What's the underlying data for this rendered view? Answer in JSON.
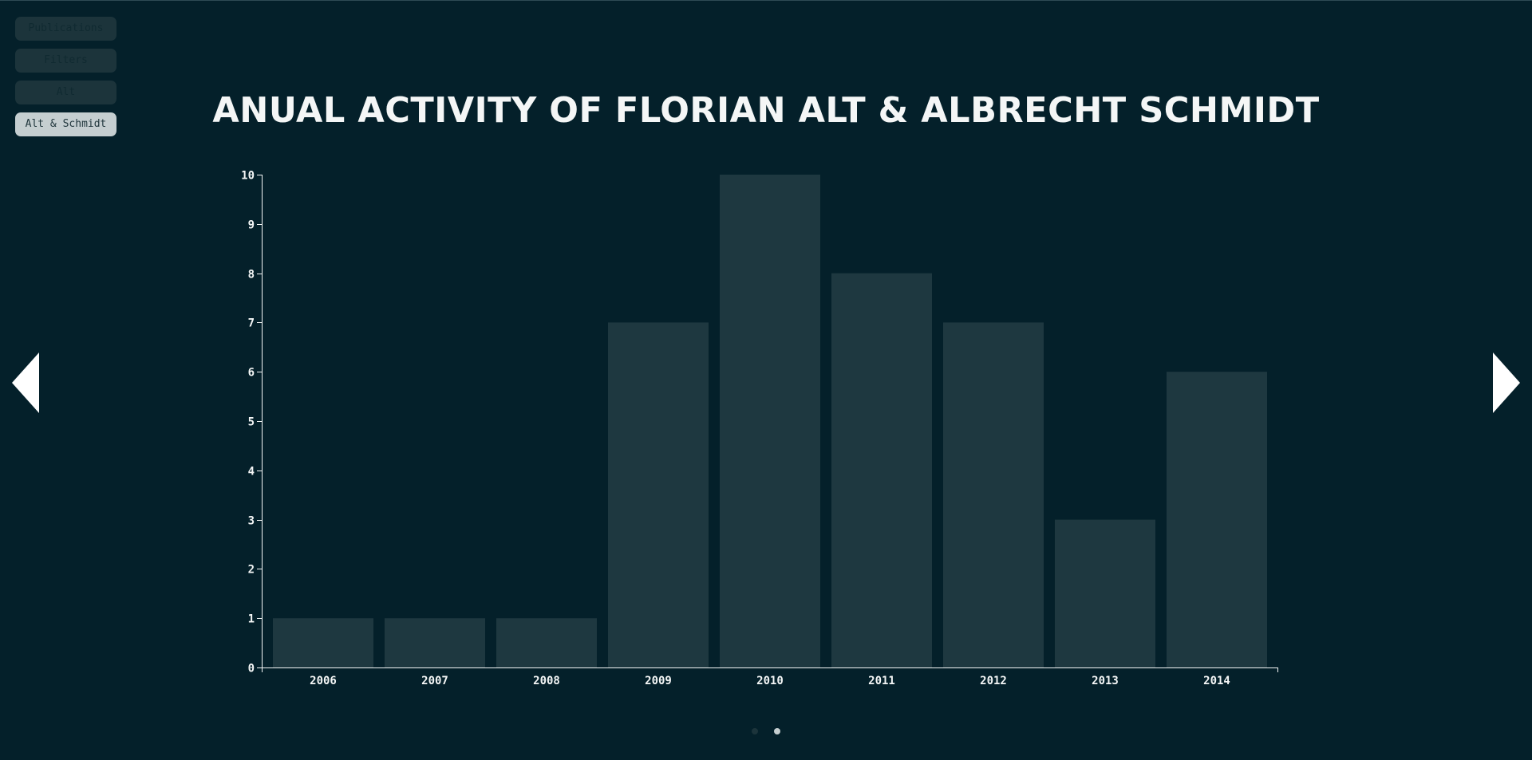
{
  "nav": {
    "items": [
      {
        "label": "Publications",
        "active": false
      },
      {
        "label": "Filters",
        "active": false
      },
      {
        "label": "Alt",
        "active": false
      },
      {
        "label": "Alt & Schmidt",
        "active": true
      }
    ]
  },
  "title": "Anual Activity of Florian Alt & Albrecht Schmidt",
  "pagination": {
    "total": 2,
    "current": 2
  },
  "colors": {
    "background": "#04202a",
    "bar": "#1e3840",
    "axis": "#f4f6f6",
    "active_button": "#c5ced0",
    "inactive_button": "#1c343b"
  },
  "chart_data": {
    "type": "bar",
    "title": "Anual Activity of Florian Alt & Albrecht Schmidt",
    "xlabel": "",
    "ylabel": "",
    "categories": [
      "2006",
      "2007",
      "2008",
      "2009",
      "2010",
      "2011",
      "2012",
      "2013",
      "2014"
    ],
    "values": [
      1,
      1,
      1,
      7,
      10,
      8,
      7,
      3,
      6
    ],
    "ylim": [
      0,
      10
    ],
    "yticks": [
      0,
      1,
      2,
      3,
      4,
      5,
      6,
      7,
      8,
      9,
      10
    ],
    "grid": false,
    "legend": "none"
  }
}
